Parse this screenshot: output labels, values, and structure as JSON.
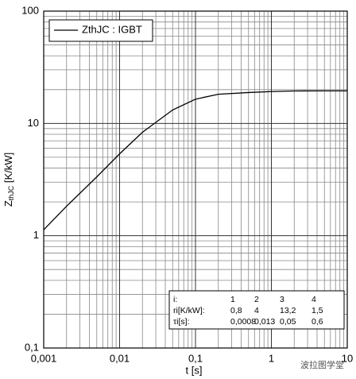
{
  "chart_data": {
    "type": "line",
    "xlabel": "t [s]",
    "ylabel": {
      "main": "Z",
      "sub": "thJC",
      "rest": " [K/kW]"
    },
    "x": [
      0.001,
      0.002,
      0.005,
      0.01,
      0.02,
      0.05,
      0.1,
      0.2,
      0.5,
      1,
      2,
      5,
      10
    ],
    "series": [
      {
        "name": "ZthJC : IGBT",
        "color": "#000000",
        "values": [
          1.13,
          1.83,
          3.34,
          5.36,
          8.34,
          13.18,
          16.44,
          18.18,
          18.85,
          19.22,
          19.45,
          19.5,
          19.5
        ]
      }
    ],
    "xscale": "log",
    "yscale": "log",
    "xlim": [
      0.001,
      10
    ],
    "ylim": [
      0.1,
      100
    ],
    "xticks": [
      {
        "value": 0.001,
        "label": "0,001"
      },
      {
        "value": 0.01,
        "label": "0,01"
      },
      {
        "value": 0.1,
        "label": "0,1"
      },
      1,
      10
    ],
    "yticks": [
      {
        "value": 0.1,
        "label": "0,1"
      },
      1,
      10,
      100
    ],
    "xminorticks": [
      0.002,
      0.003,
      0.004,
      0.005,
      0.006,
      0.007,
      0.008,
      0.009,
      0.02,
      0.03,
      0.04,
      0.05,
      0.06,
      0.07,
      0.08,
      0.09,
      0.2,
      0.3,
      0.4,
      0.5,
      0.6,
      0.7,
      0.8,
      0.9,
      2,
      3,
      4,
      5,
      6,
      7,
      8,
      9
    ],
    "yminorticks": [
      0.2,
      0.3,
      0.4,
      0.5,
      0.6,
      0.7,
      0.8,
      0.9,
      2,
      3,
      4,
      5,
      6,
      7,
      8,
      9,
      20,
      30,
      40,
      50,
      60,
      70,
      80,
      90
    ],
    "grid": true,
    "legend": "upper left",
    "inset_table": {
      "rows": [
        [
          "i:",
          "1",
          "2",
          "3",
          "4"
        ],
        [
          "ri[K/kW]:",
          "0,8",
          "4",
          "13,2",
          "1,5"
        ],
        [
          "τi[s]:",
          "0,0008",
          "0,013",
          "0,05",
          "0,6"
        ]
      ]
    },
    "watermark": "波拉图学堂"
  }
}
